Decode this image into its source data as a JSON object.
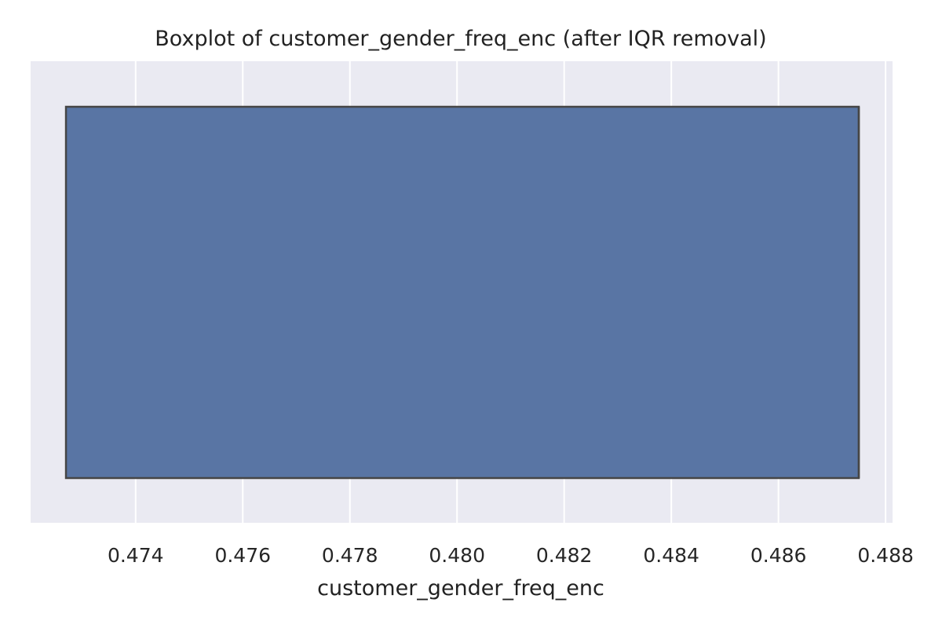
{
  "chart_data": {
    "type": "boxplot",
    "orientation": "horizontal",
    "title": "Boxplot of customer_gender_freq_enc (after IQR removal)",
    "xlabel": "customer_gender_freq_enc",
    "ylabel": "",
    "xlim": [
      0.47204,
      0.48813
    ],
    "xticks": [
      0.474,
      0.476,
      0.478,
      0.48,
      0.482,
      0.484,
      0.486,
      0.488
    ],
    "xtick_labels": [
      "0.474",
      "0.476",
      "0.478",
      "0.480",
      "0.482",
      "0.484",
      "0.486",
      "0.488"
    ],
    "grid": true,
    "series": [
      {
        "q1": 0.4727,
        "median": 0.4875,
        "q3": 0.4875,
        "whisker_low": 0.4727,
        "whisker_high": 0.4875
      }
    ],
    "colors": {
      "background": "#eaeaf2",
      "grid": "#ffffff",
      "box_fill": "#5975a4",
      "box_edge": "#464646"
    }
  }
}
